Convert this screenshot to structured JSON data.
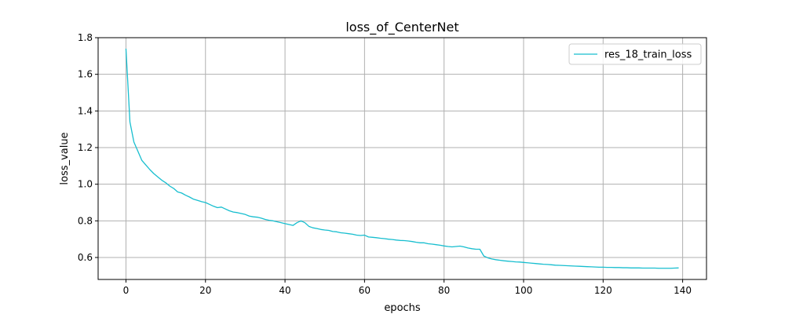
{
  "chart_data": {
    "type": "line",
    "title": "loss_of_CenterNet",
    "xlabel": "epochs",
    "ylabel": "loss_value",
    "xlim": [
      -7,
      146
    ],
    "ylim": [
      0.48,
      1.8
    ],
    "xticks": [
      0,
      20,
      40,
      60,
      80,
      100,
      120,
      140
    ],
    "yticks": [
      0.6,
      0.8,
      1.0,
      1.2,
      1.4,
      1.6,
      1.8
    ],
    "xtick_labels": [
      "0",
      "20",
      "40",
      "60",
      "80",
      "100",
      "120",
      "140"
    ],
    "ytick_labels": [
      "0.6",
      "0.8",
      "1.0",
      "1.2",
      "1.4",
      "1.6",
      "1.8"
    ],
    "grid": true,
    "legend_position": "top-right",
    "series": [
      {
        "name": "res_18_train_loss",
        "color": "#17becf",
        "x": [
          0,
          1,
          2,
          3,
          4,
          5,
          6,
          7,
          8,
          9,
          10,
          11,
          12,
          13,
          14,
          15,
          16,
          17,
          18,
          19,
          20,
          21,
          22,
          23,
          24,
          25,
          26,
          27,
          28,
          29,
          30,
          31,
          32,
          33,
          34,
          35,
          36,
          37,
          38,
          39,
          40,
          41,
          42,
          43,
          44,
          45,
          46,
          47,
          48,
          49,
          50,
          51,
          52,
          53,
          54,
          55,
          56,
          57,
          58,
          59,
          60,
          61,
          62,
          63,
          64,
          65,
          66,
          67,
          68,
          69,
          70,
          71,
          72,
          73,
          74,
          75,
          76,
          77,
          78,
          79,
          80,
          81,
          82,
          83,
          84,
          85,
          86,
          87,
          88,
          89,
          90,
          91,
          92,
          93,
          94,
          95,
          96,
          97,
          98,
          99,
          100,
          101,
          102,
          103,
          104,
          105,
          106,
          107,
          108,
          109,
          110,
          111,
          112,
          113,
          114,
          115,
          116,
          117,
          118,
          119,
          120,
          121,
          122,
          123,
          124,
          125,
          126,
          127,
          128,
          129,
          130,
          131,
          132,
          133,
          134,
          135,
          136,
          137,
          138,
          139
        ],
        "y": [
          1.74,
          1.34,
          1.23,
          1.18,
          1.13,
          1.105,
          1.08,
          1.058,
          1.04,
          1.022,
          1.008,
          0.99,
          0.977,
          0.958,
          0.952,
          0.94,
          0.93,
          0.918,
          0.912,
          0.905,
          0.9,
          0.89,
          0.88,
          0.872,
          0.875,
          0.865,
          0.855,
          0.848,
          0.845,
          0.84,
          0.835,
          0.826,
          0.822,
          0.82,
          0.815,
          0.808,
          0.803,
          0.8,
          0.795,
          0.79,
          0.785,
          0.78,
          0.775,
          0.79,
          0.8,
          0.79,
          0.77,
          0.762,
          0.758,
          0.753,
          0.75,
          0.748,
          0.742,
          0.74,
          0.735,
          0.733,
          0.73,
          0.727,
          0.722,
          0.72,
          0.722,
          0.712,
          0.71,
          0.708,
          0.705,
          0.703,
          0.7,
          0.698,
          0.695,
          0.693,
          0.692,
          0.69,
          0.687,
          0.683,
          0.68,
          0.68,
          0.675,
          0.673,
          0.67,
          0.667,
          0.663,
          0.66,
          0.658,
          0.66,
          0.662,
          0.658,
          0.652,
          0.648,
          0.645,
          0.645,
          0.608,
          0.598,
          0.592,
          0.588,
          0.585,
          0.582,
          0.58,
          0.578,
          0.576,
          0.575,
          0.573,
          0.571,
          0.569,
          0.567,
          0.565,
          0.563,
          0.562,
          0.56,
          0.558,
          0.557,
          0.556,
          0.555,
          0.554,
          0.553,
          0.552,
          0.551,
          0.55,
          0.549,
          0.548,
          0.547,
          0.547,
          0.546,
          0.546,
          0.545,
          0.545,
          0.544,
          0.544,
          0.543,
          0.543,
          0.543,
          0.542,
          0.542,
          0.542,
          0.542,
          0.541,
          0.541,
          0.541,
          0.541,
          0.542,
          0.543
        ]
      }
    ]
  }
}
